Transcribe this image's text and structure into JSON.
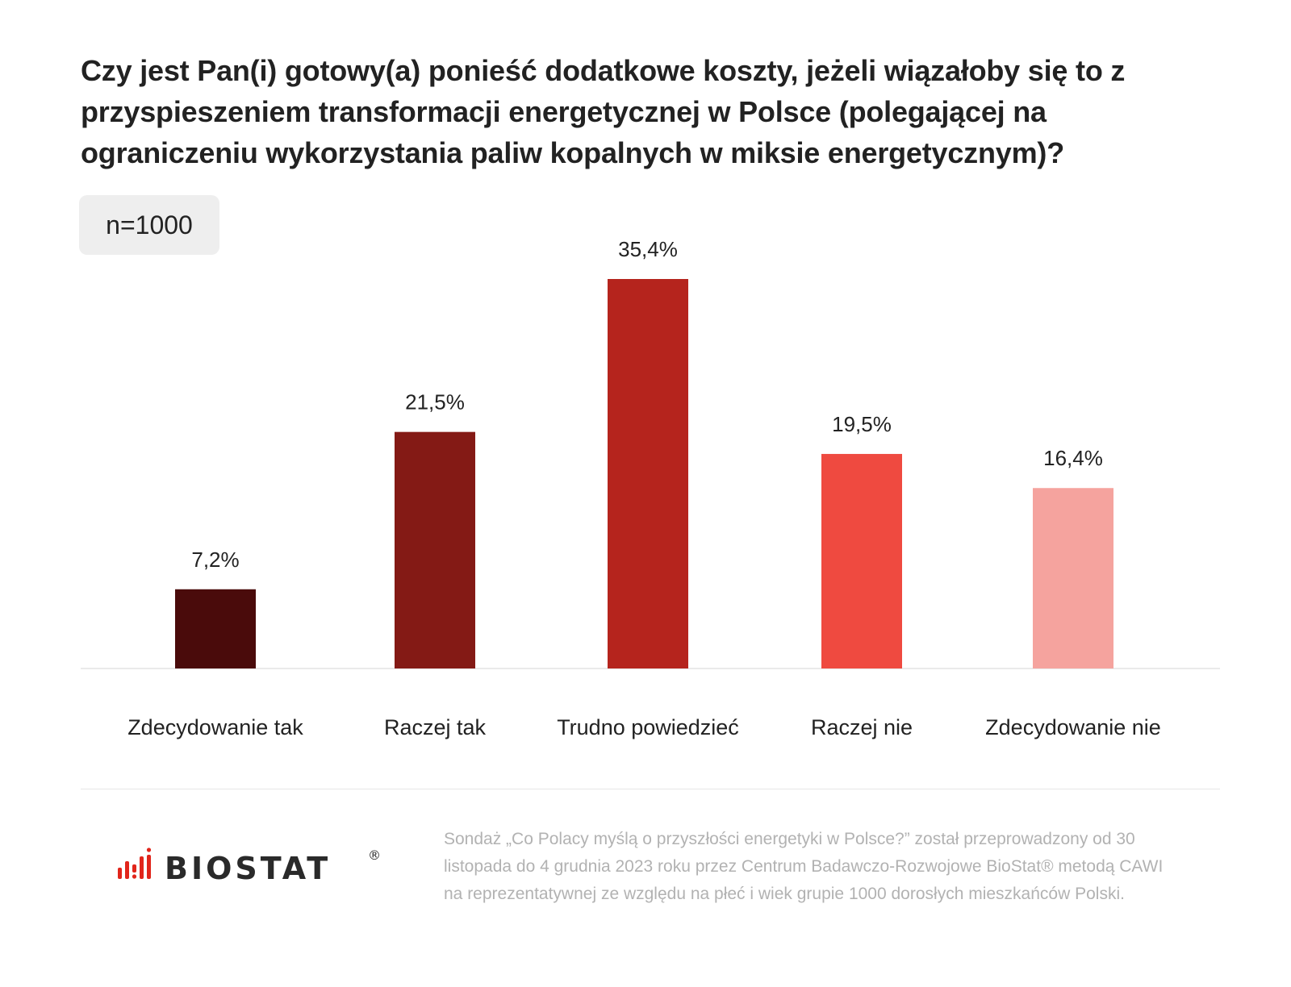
{
  "title": "Czy jest Pan(i) gotowy(a) ponieść dodatkowe koszty, jeżeli wiązałoby się to z przyspieszeniem transformacji energetycznej w Polsce (polegającej na ograniczeniu wykorzystania paliw kopalnych w miksie energetycznym)?",
  "sample_label": "n=1000",
  "chart_data": {
    "type": "bar",
    "title": "Czy jest Pan(i) gotowy(a) ponieść dodatkowe koszty, jeżeli wiązałoby się to z przyspieszeniem transformacji energetycznej w Polsce (polegającej na ograniczeniu wykorzystania paliw kopalnych w miksie energetycznym)?",
    "categories": [
      "Zdecydowanie tak",
      "Raczej tak",
      "Trudno powiedzieć",
      "Raczej nie",
      "Zdecydowanie nie"
    ],
    "values": [
      7.2,
      21.5,
      35.4,
      19.5,
      16.4
    ],
    "value_labels": [
      "7,2%",
      "21,5%",
      "35,4%",
      "19,5%",
      "16,4%"
    ],
    "colors": [
      "#4a0b0b",
      "#841a15",
      "#b5241d",
      "#ef4a40",
      "#f5a39e"
    ],
    "xlabel": "",
    "ylabel": "",
    "ylim": [
      0,
      35.4
    ],
    "grid": false,
    "legend": "none"
  },
  "logo": {
    "text": "BIOSTAT",
    "mark": "®",
    "accent": "#e1251b"
  },
  "footnote": "Sondaż „Co Polacy myślą o przyszłości energetyki w Polsce?” został przeprowadzony od 30 listopada do 4 grudnia 2023 roku przez Centrum Badawczo-Rozwojowe BioStat® metodą CAWI na reprezentatywnej ze względu na płeć i wiek grupie 1000 dorosłych mieszkańców Polski."
}
